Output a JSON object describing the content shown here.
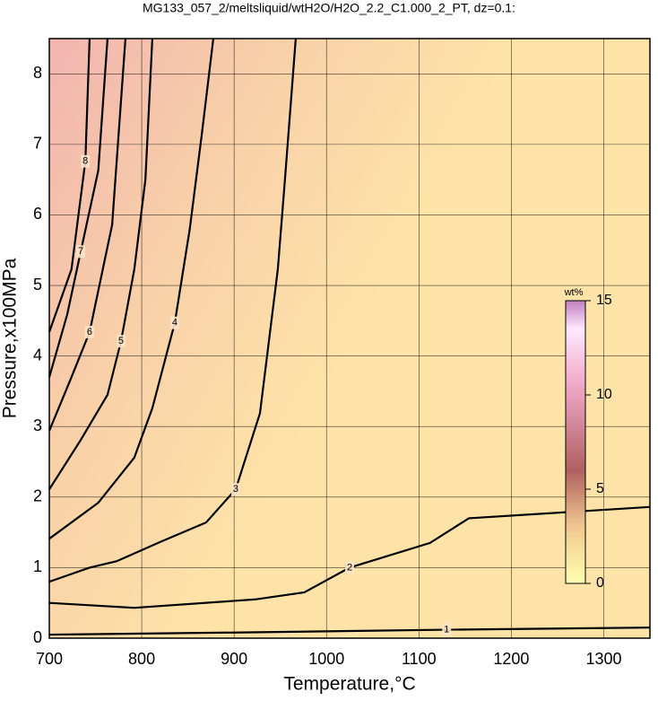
{
  "chart_data": {
    "type": "contour",
    "title": "MG133_057_2/meltsliquid/wtH2O/H2O_2.2_C1.000_2_PT, dz=0.1:",
    "xlabel": "Temperature,°C",
    "ylabel": "Pressure,x100MPa",
    "xlim": [
      700,
      1350
    ],
    "ylim": [
      0,
      8.5
    ],
    "xticks": [
      700,
      800,
      900,
      1000,
      1100,
      1200,
      1300
    ],
    "yticks": [
      0,
      1,
      2,
      3,
      4,
      5,
      6,
      7,
      8
    ],
    "grid": true,
    "colorbar": {
      "label": "wt%",
      "lim": [
        0,
        15
      ],
      "ticks": [
        0,
        5,
        10,
        15
      ]
    },
    "contours": [
      {
        "level": 1,
        "x": [
          700,
          900,
          1130,
          1350
        ],
        "y": [
          0.05,
          0.08,
          0.12,
          0.15
        ]
      },
      {
        "level": 2,
        "x": [
          700,
          792,
          923,
          976,
          1025,
          1112,
          1154,
          1350
        ],
        "y": [
          0.5,
          0.43,
          0.55,
          0.65,
          1.0,
          1.35,
          1.7,
          1.86
        ]
      },
      {
        "level": 3,
        "x": [
          700,
          743.6,
          772.7,
          821,
          869.7,
          901.7,
          928,
          947.3,
          955,
          966.7
        ],
        "y": [
          0.8,
          1.0,
          1.09,
          1.37,
          1.64,
          2.11,
          3.19,
          5.23,
          6.5,
          8.5
        ]
      },
      {
        "level": 4,
        "x": [
          700,
          753,
          792,
          811.5,
          835.8,
          852,
          865,
          877.5
        ],
        "y": [
          1.41,
          1.92,
          2.56,
          3.26,
          4.47,
          5.8,
          7.14,
          8.5
        ]
      },
      {
        "level": 5,
        "x": [
          700,
          734,
          763,
          777.6,
          792,
          804,
          811.5
        ],
        "y": [
          2.11,
          2.81,
          3.45,
          4.21,
          5.23,
          6.5,
          8.5
        ]
      },
      {
        "level": 6,
        "x": [
          700,
          724,
          743.6,
          768,
          782.4
        ],
        "y": [
          2.94,
          3.7,
          4.34,
          5.86,
          8.5
        ]
      },
      {
        "level": 7,
        "x": [
          700,
          719.4,
          734,
          753,
          763
        ],
        "y": [
          3.7,
          4.59,
          5.48,
          6.63,
          8.5
        ]
      },
      {
        "level": 8,
        "x": [
          700,
          724,
          739,
          743.6
        ],
        "y": [
          4.34,
          5.23,
          6.76,
          8.5
        ]
      }
    ]
  }
}
